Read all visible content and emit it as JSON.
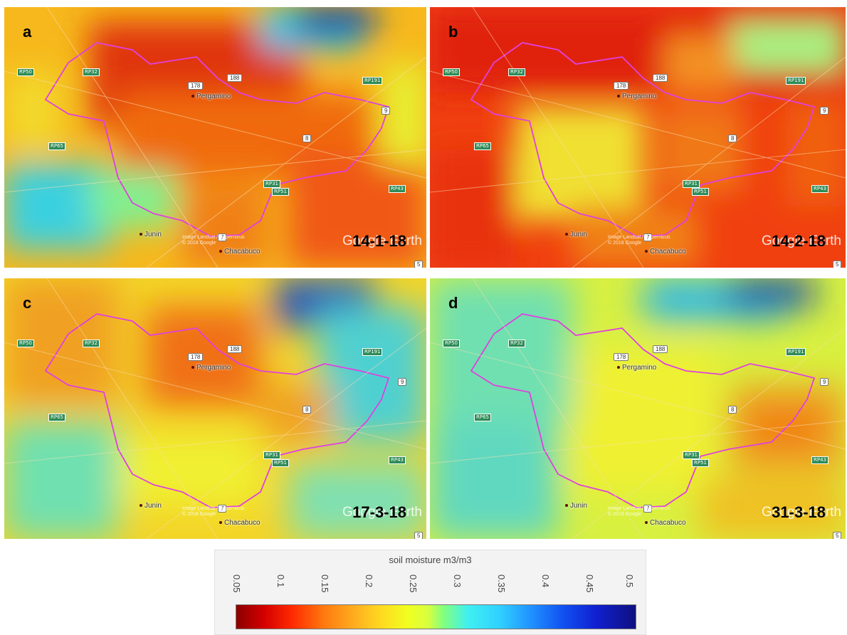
{
  "panels": [
    {
      "id": "a",
      "letter": "a",
      "date": "14-1-18"
    },
    {
      "id": "b",
      "letter": "b",
      "date": "14-2-18"
    },
    {
      "id": "c",
      "letter": "c",
      "date": "17-3-18"
    },
    {
      "id": "d",
      "letter": "d",
      "date": "31-3-18"
    }
  ],
  "map_labels": {
    "city_main": "Pergamino",
    "city_junin": "Junin",
    "city_chacabuco": "Chacabuco",
    "watermark": "Google Earth",
    "credit": "Image Landsat / Copernicus\n© 2018 Google",
    "routes": [
      "188",
      "178",
      "8",
      "9",
      "7",
      "5"
    ],
    "provincial": [
      "RP50",
      "RP32",
      "RP31",
      "RP51",
      "RP43",
      "RP65",
      "RP191"
    ]
  },
  "legend": {
    "title": "soil moisture m3/m3",
    "ticks": [
      "0.05",
      "0.1",
      "0.15",
      "0.2",
      "0.25",
      "0.3",
      "0.35",
      "0.4",
      "0.45",
      "0.5"
    ],
    "colors": [
      "#8b0000",
      "#ff2a00",
      "#ff8c00",
      "#ffd820",
      "#f0ff20",
      "#80ff80",
      "#40e0f0",
      "#2090ff",
      "#1050f0",
      "#101080"
    ]
  }
}
